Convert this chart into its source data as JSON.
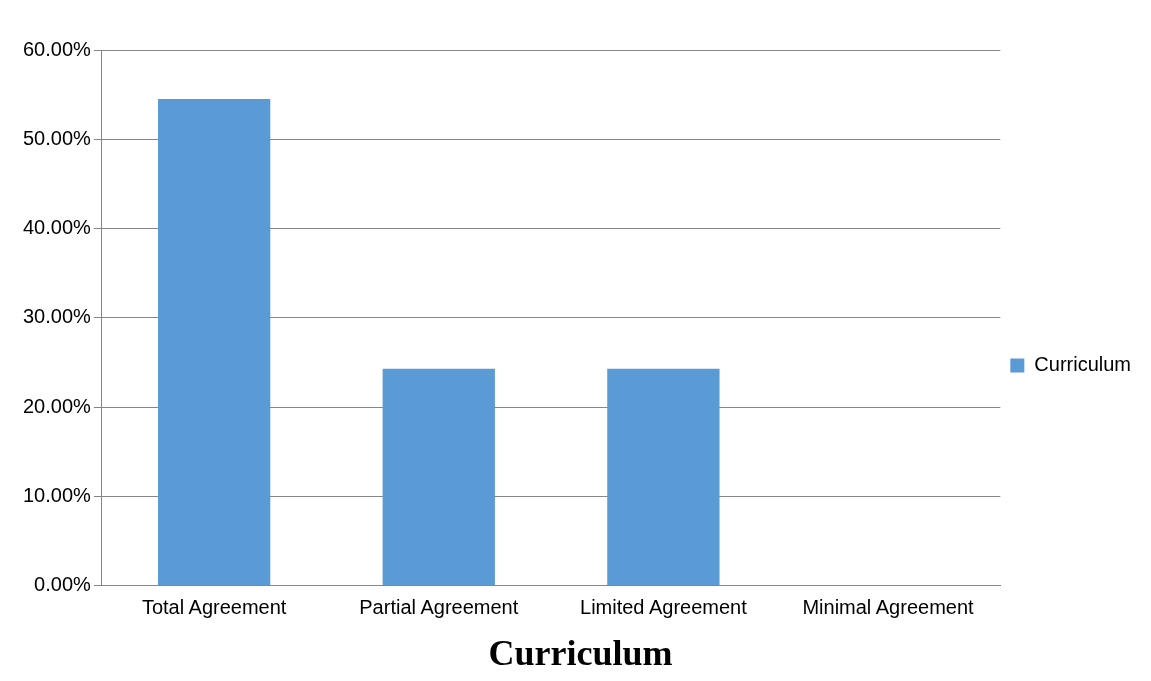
{
  "chart_data": {
    "type": "bar",
    "title": "Curriculum",
    "categories": [
      "Total Agreement",
      "Partial Agreement",
      "Limited Agreement",
      "Minimal Agreement"
    ],
    "series": [
      {
        "name": "Curriculum",
        "color": "#5b9bd5",
        "values": [
          54.5,
          24.3,
          24.3,
          0
        ]
      }
    ],
    "ylim": [
      0,
      60
    ],
    "yticks": [
      {
        "value": 0,
        "label": "0.00%"
      },
      {
        "value": 10,
        "label": "10.00%"
      },
      {
        "value": 20,
        "label": "20.00%"
      },
      {
        "value": 30,
        "label": "30.00%"
      },
      {
        "value": 40,
        "label": "40.00%"
      },
      {
        "value": 50,
        "label": "50.00%"
      },
      {
        "value": 60,
        "label": "60.00%"
      }
    ],
    "grid": "y",
    "legend": "right"
  }
}
